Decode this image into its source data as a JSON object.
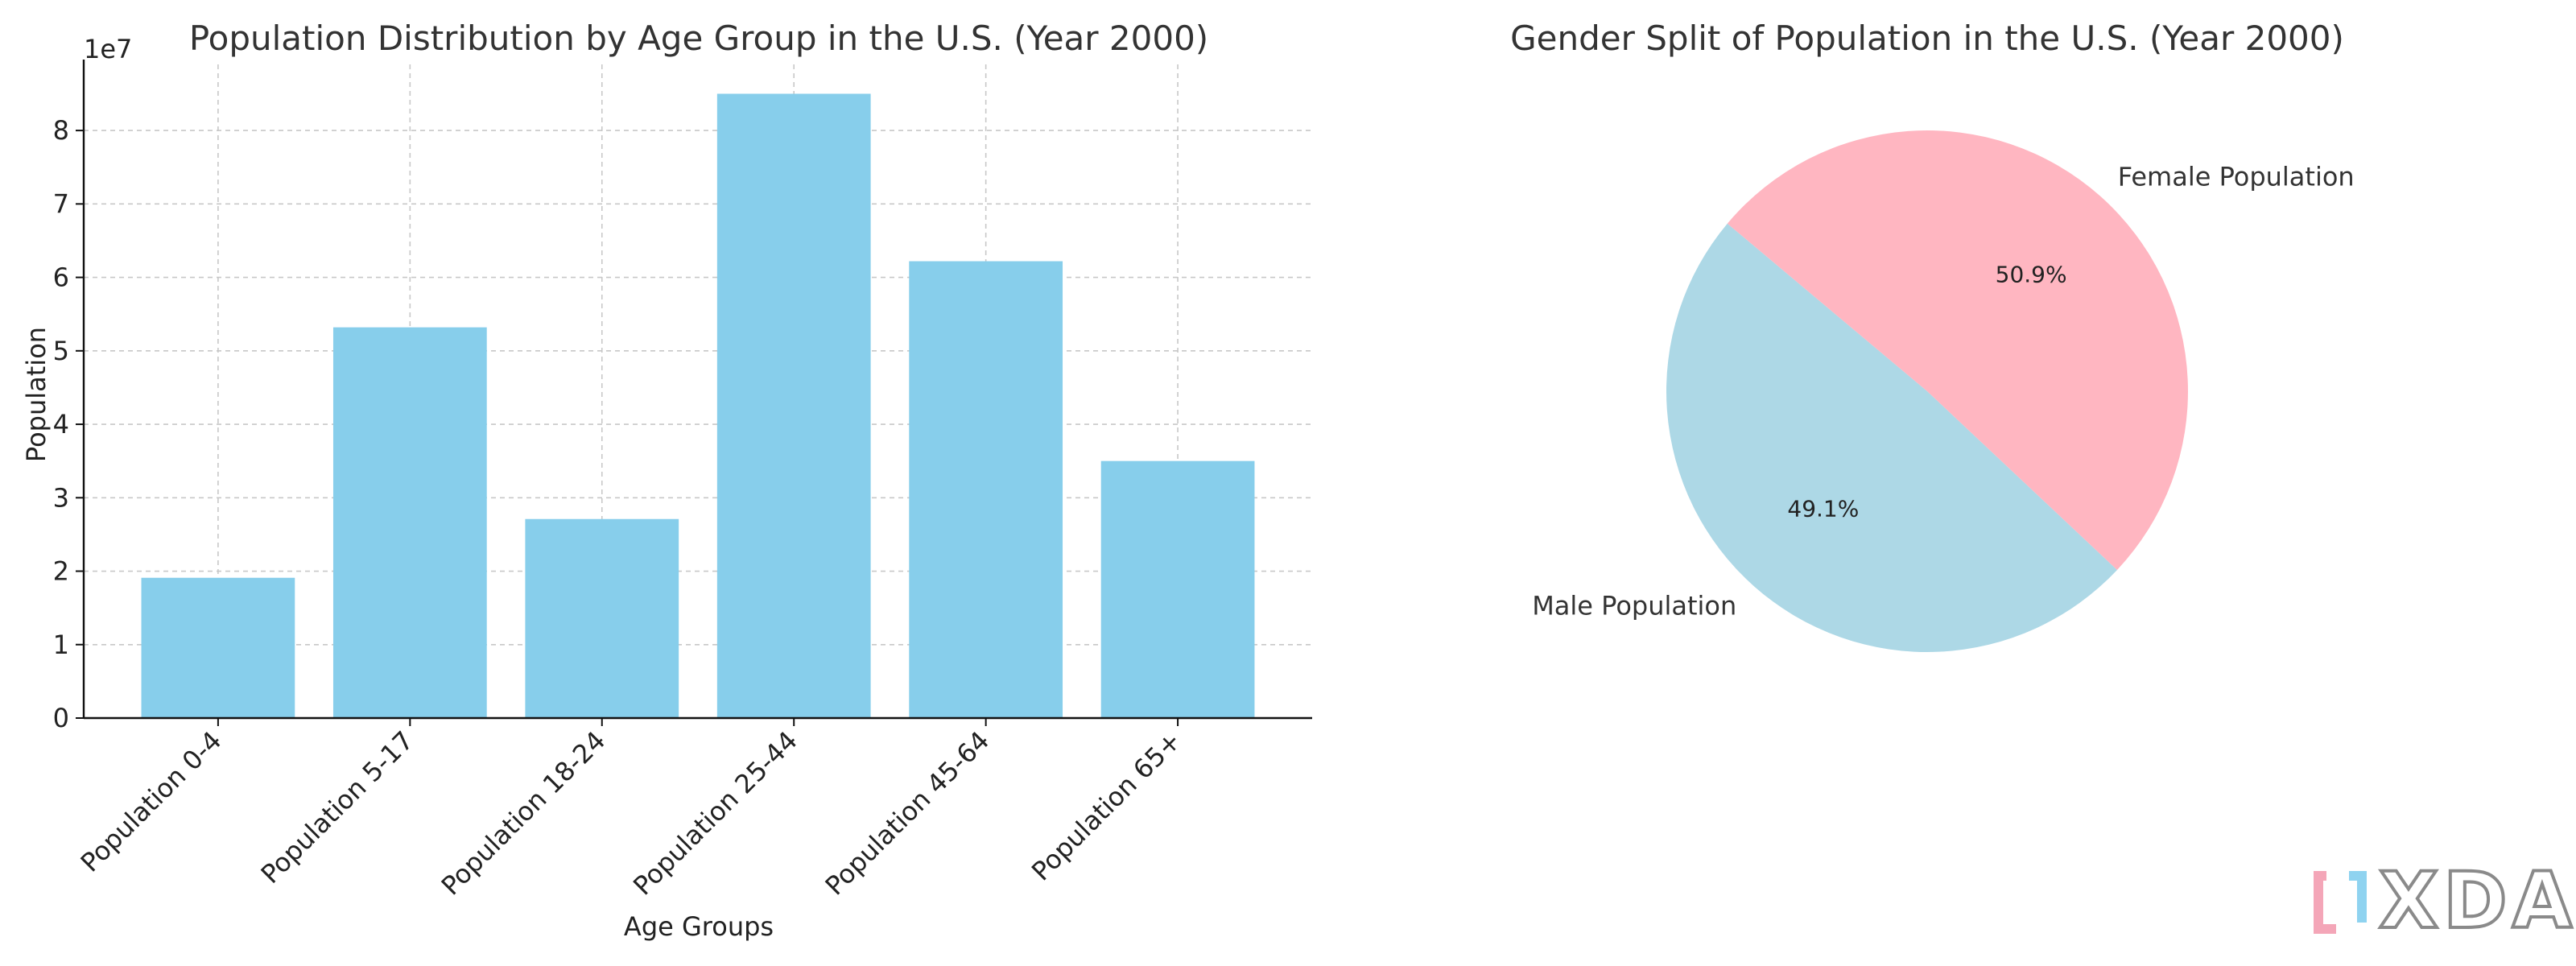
{
  "chart_data": [
    {
      "type": "bar",
      "title": "Population Distribution by Age Group in the U.S. (Year 2000)",
      "xlabel": "Age Groups",
      "ylabel": "Population",
      "y_multiplier_label": "1e7",
      "categories": [
        "Population 0-4",
        "Population 5-17",
        "Population 18-24",
        "Population 25-44",
        "Population 45-64",
        "Population 65+"
      ],
      "values": [
        19100000,
        53200000,
        27100000,
        85000000,
        62200000,
        35000000
      ],
      "ylim": [
        0,
        89000000
      ],
      "yticks": [
        0,
        10000000,
        20000000,
        30000000,
        40000000,
        50000000,
        60000000,
        70000000,
        80000000
      ],
      "ytick_labels": [
        "0",
        "1",
        "2",
        "3",
        "4",
        "5",
        "6",
        "7",
        "8"
      ],
      "grid": true,
      "bar_color": "#87CEEB"
    },
    {
      "type": "pie",
      "title": "Gender Split of Population in the U.S. (Year 2000)",
      "start_angle_deg": 140,
      "slices": [
        {
          "label": "Male Population",
          "value": 49.1,
          "pct_label": "49.1%",
          "color": "#ADD8E6"
        },
        {
          "label": "Female Population",
          "value": 50.9,
          "pct_label": "50.9%",
          "color": "#FFB6C1"
        }
      ]
    }
  ],
  "watermark": {
    "text": "XDA",
    "accent_colors": [
      "#f4a6b8",
      "#8fd3f0"
    ]
  }
}
